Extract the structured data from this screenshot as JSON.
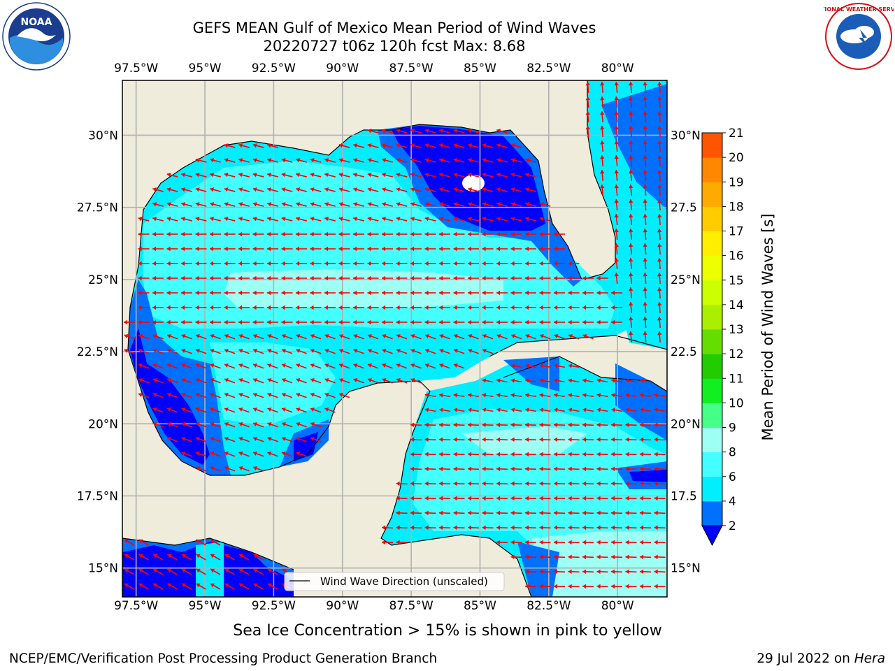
{
  "title": {
    "line1": "GEFS MEAN Gulf of Mexico Mean Period of Wind Waves",
    "line2": "20220727 t06z 120h fcst   Max: 8.68"
  },
  "map": {
    "lon_labels": [
      "97.5°W",
      "95°W",
      "92.5°W",
      "90°W",
      "87.5°W",
      "85°W",
      "82.5°W",
      "80°W"
    ],
    "lat_labels_left": [
      "30°N",
      "27.5°N",
      "25°N",
      "22.5°N",
      "20°N",
      "17.5°N",
      "15°N"
    ],
    "lat_labels_right": [
      "30°N",
      "27.5",
      "25°N",
      "22.5",
      "20°N",
      "17.5",
      "15°N"
    ],
    "lon_range": [
      -98,
      -78.2
    ],
    "lat_range": [
      14,
      31.9
    ],
    "legend_label": "Wind Wave Direction (unscaled)",
    "colors": {
      "land": "#efecdc",
      "grid": "#b0b0b0",
      "arrow": "#ff0000",
      "coast": "#000000"
    }
  },
  "colorbar": {
    "label": "Mean Period of Wind Waves [s]",
    "ticks": [
      "2",
      "4",
      "6",
      "8",
      "9",
      "10",
      "11",
      "12",
      "13",
      "14",
      "15",
      "16",
      "17",
      "18",
      "19",
      "20",
      "21"
    ],
    "colors": [
      "#0070ff",
      "#00eeff",
      "#44ffff",
      "#9efff5",
      "#44ff88",
      "#11ee22",
      "#22cc00",
      "#66dd00",
      "#aaee00",
      "#ccff00",
      "#eeff00",
      "#ffee00",
      "#ffcc00",
      "#ffaa00",
      "#ff8800",
      "#ff5500",
      "#ff2200",
      "#ff0000"
    ],
    "extend_color": "#0000ff"
  },
  "subcaption": "Sea Ice Concentration > 15% is shown in pink to yellow",
  "footer": {
    "left": "NCEP/EMC/Verification Post Processing Product Generation Branch",
    "right_prefix": "29 Jul 2022 on ",
    "right_machine": "Hera"
  },
  "logos": {
    "noaa_text": "NOAA",
    "nws_text": "NATIONAL WEATHER SERVICE"
  }
}
